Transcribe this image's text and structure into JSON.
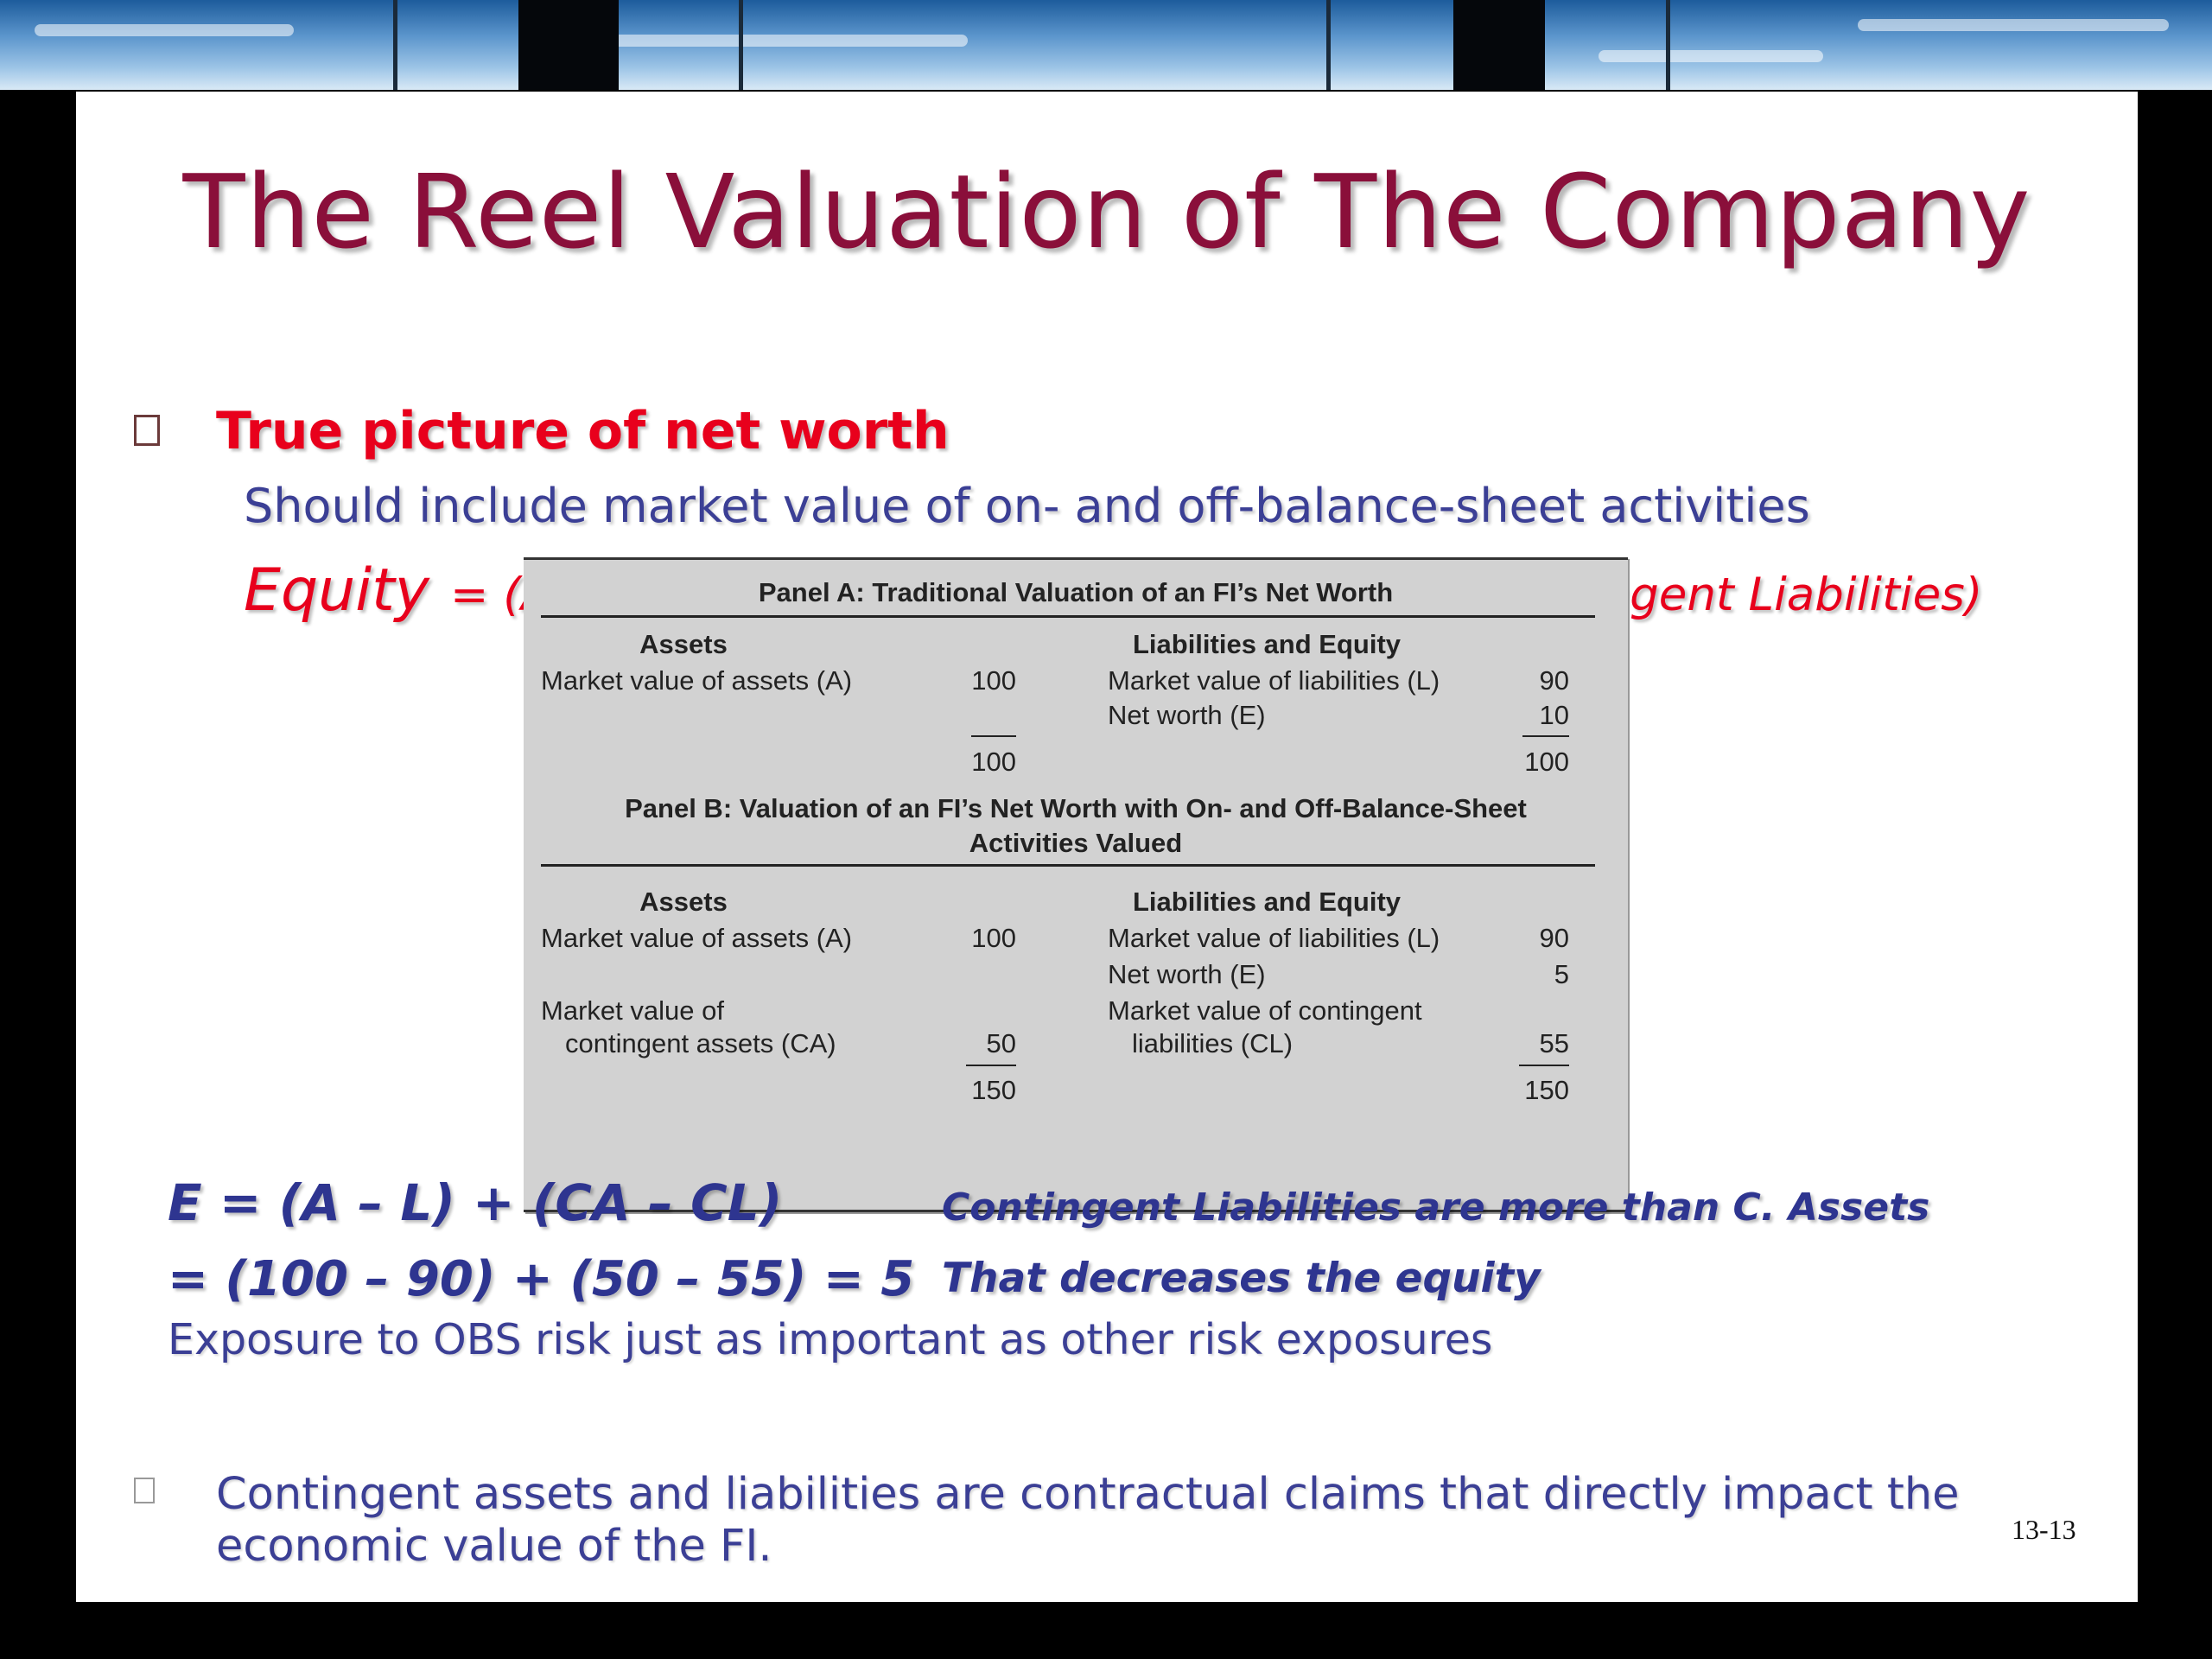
{
  "slide": {
    "title": "The Reel Valuation of The Company",
    "bullet1": "True picture of net worth",
    "subline_prefix": "Should include ",
    "subline_highlight": "market value of on- and off-balance-sheet activities",
    "equity_word": "Equity",
    "equity_formula": "= (Assets – Liabilities)+ (Contingent Assets –Contingent Liabilities)",
    "formula_line1": "E = (A – L) + (CA – CL)",
    "formula_line2": "= (100 – 90) + (50 – 55)  = 5",
    "note1": "Contingent Liabilities are more than C. Assets",
    "note2": "That decreases the equity",
    "exposure": "Exposure to OBS risk just as important as other risk exposures",
    "bullet2": "Contingent assets and liabilities are contractual claims that directly impact the economic value of the FI.",
    "page_number": "13-13"
  },
  "panel_a": {
    "title": "Panel A: Traditional Valuation of an FI’s Net Worth",
    "assets_header": "Assets",
    "liab_header": "Liabilities and Equity",
    "row1_left_label": "Market value of assets (A)",
    "row1_left_value": "100",
    "row1_right_label": "Market value of liabilities (L)",
    "row1_right_value": "90",
    "row2_right_label": "Net worth (E)",
    "row2_right_value": "10",
    "total_left": "100",
    "total_right": "100"
  },
  "panel_b": {
    "title_line1": "Panel B: Valuation of an FI’s Net Worth with On- and Off-Balance-Sheet",
    "title_line2": "Activities Valued",
    "assets_header": "Assets",
    "liab_header": "Liabilities and Equity",
    "row1_left_label": "Market value of assets (A)",
    "row1_left_value": "100",
    "row1_right_label": "Market value of liabilities (L)",
    "row1_right_value": "90",
    "row2_right_label": "Net worth (E)",
    "row2_right_value": "5",
    "row3_left_label_1": "Market value of",
    "row3_left_label_2": "contingent assets (CA)",
    "row3_left_value": "50",
    "row3_right_label_1": "Market value of contingent",
    "row3_right_label_2": "liabilities (CL)",
    "row3_right_value": "55",
    "total_left": "150",
    "total_right": "150"
  }
}
